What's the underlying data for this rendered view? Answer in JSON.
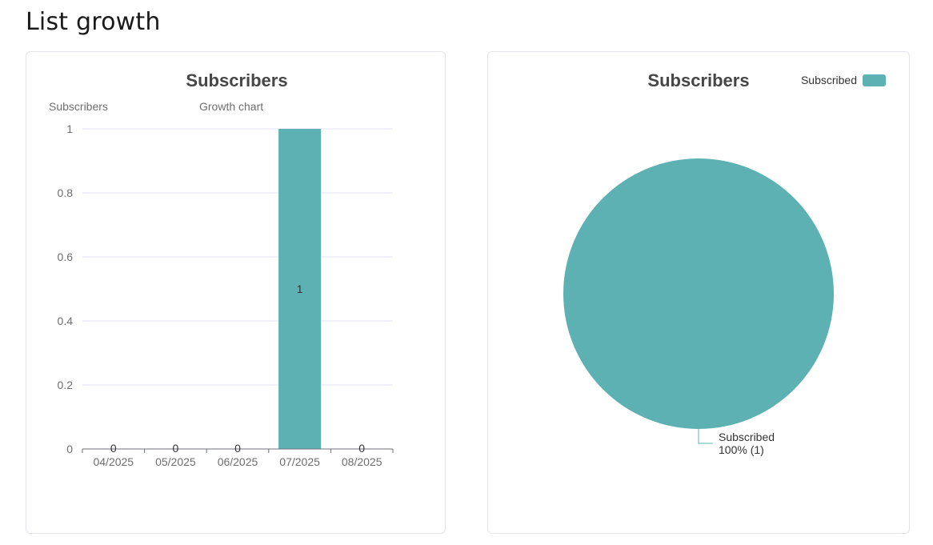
{
  "page": {
    "title": "List growth"
  },
  "colors": {
    "accent": "#5db1b3",
    "grid": "#e0e3f0",
    "axis": "#6e7079",
    "text_muted": "#6e6e6e",
    "title": "#464646"
  },
  "bar_card": {
    "title": "Subscribers",
    "legend_left": "Subscribers",
    "legend_right": "Growth chart"
  },
  "pie_card": {
    "title": "Subscribers",
    "legend_label": "Subscribed",
    "slice_label_name": "Subscribed",
    "slice_label_value": "100% (1)"
  },
  "chart_data": [
    {
      "type": "bar",
      "title": "Subscribers",
      "categories": [
        "04/2025",
        "05/2025",
        "06/2025",
        "07/2025",
        "08/2025"
      ],
      "values": [
        0,
        0,
        0,
        1,
        0
      ],
      "data_labels": [
        "0",
        "0",
        "0",
        "1",
        "0"
      ],
      "ylim": [
        0,
        1
      ],
      "yticks": [
        "0",
        "0.2",
        "0.4",
        "0.6",
        "0.8",
        "1"
      ],
      "ytick_values": [
        0,
        0.2,
        0.4,
        0.6,
        0.8,
        1
      ],
      "grid": true,
      "legend_entries": [
        "Subscribers",
        "Growth chart"
      ],
      "color": "#5db1b3"
    },
    {
      "type": "pie",
      "title": "Subscribers",
      "slices": [
        {
          "name": "Subscribed",
          "value": 1,
          "percent": 100
        }
      ],
      "legend": "top-right",
      "color": "#5db1b3"
    }
  ]
}
